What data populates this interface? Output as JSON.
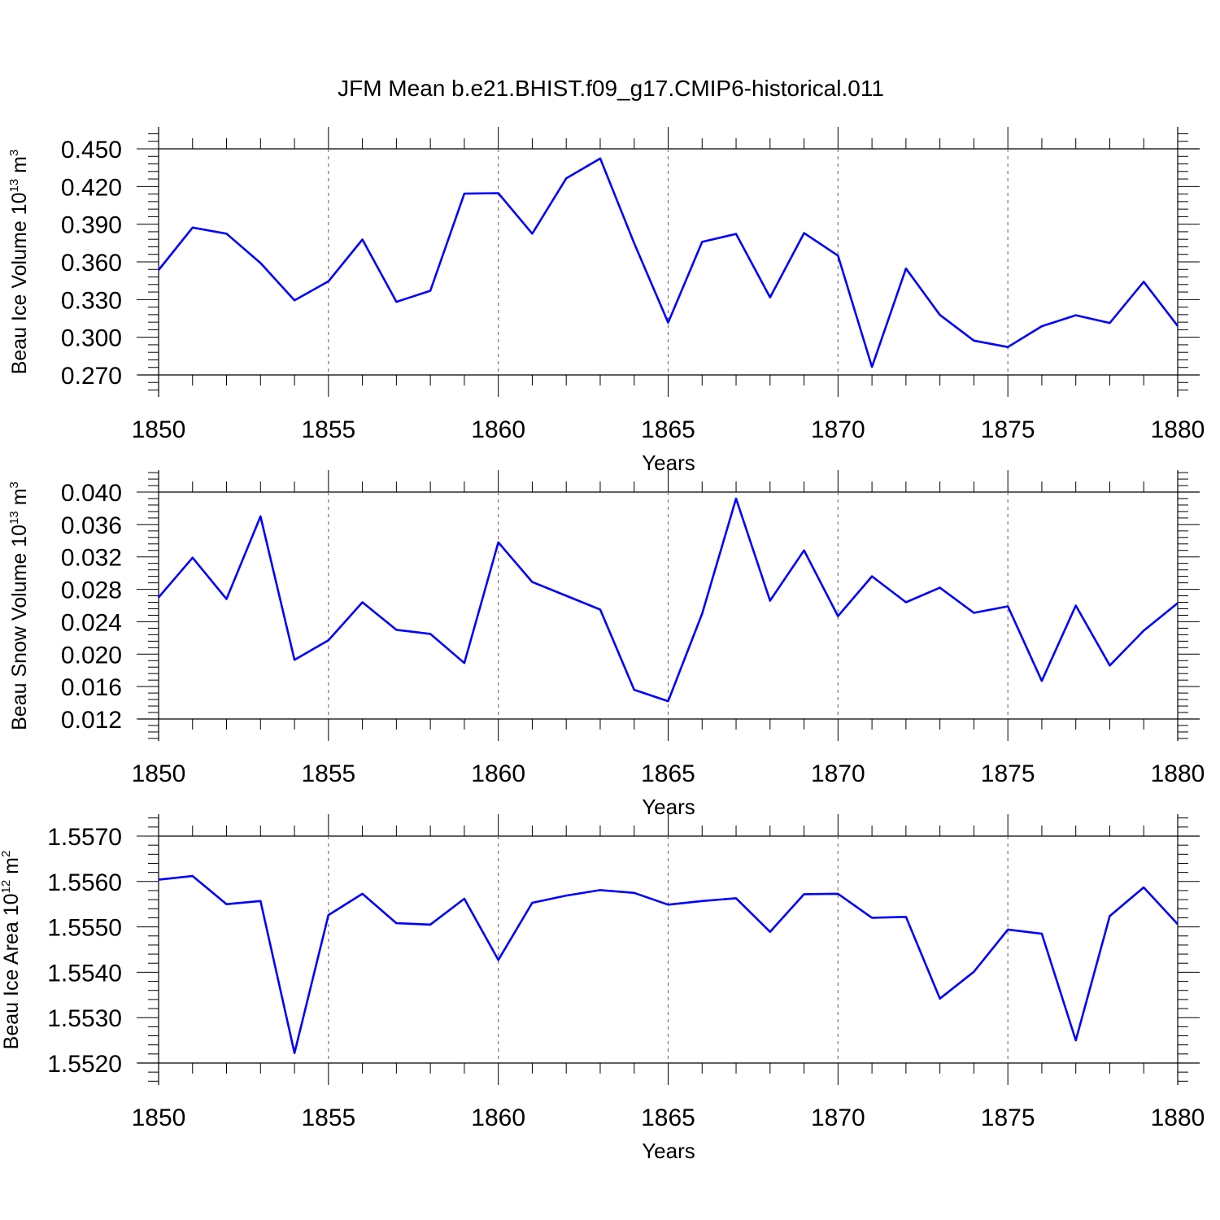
{
  "chart_data": [
    {
      "type": "line",
      "title": "JFM Mean b.e21.BHIST.f09_g17.CMIP6-historical.011",
      "ylabel": "Beau Ice Volume 10",
      "ylabel_exp": "13",
      "ylabel_unit": "m",
      "ylabel_unit_exp": "3",
      "xlabel": "Years",
      "xlim": [
        1850,
        1880
      ],
      "ylim": [
        0.27,
        0.45
      ],
      "yticks": [
        "0.270",
        "0.300",
        "0.330",
        "0.360",
        "0.390",
        "0.420",
        "0.450"
      ],
      "xticks": [
        "1850",
        "1855",
        "1860",
        "1865",
        "1870",
        "1875",
        "1880"
      ],
      "x": [
        1850,
        1851,
        1852,
        1853,
        1854,
        1855,
        1856,
        1857,
        1858,
        1859,
        1860,
        1861,
        1862,
        1863,
        1864,
        1865,
        1866,
        1867,
        1868,
        1869,
        1870,
        1871,
        1872,
        1873,
        1874,
        1875,
        1876,
        1877,
        1878,
        1879,
        1880
      ],
      "values": [
        0.3535,
        0.3873,
        0.3825,
        0.3591,
        0.3294,
        0.3445,
        0.3778,
        0.3282,
        0.337,
        0.4143,
        0.4147,
        0.3825,
        0.4265,
        0.4423,
        0.3749,
        0.3117,
        0.3759,
        0.3823,
        0.3318,
        0.3829,
        0.365,
        0.2764,
        0.3547,
        0.3178,
        0.2973,
        0.2922,
        0.3088,
        0.3175,
        0.3114,
        0.3442,
        0.309
      ],
      "color": "#0000ff"
    },
    {
      "type": "line",
      "ylabel": "Beau Snow Volume 10",
      "ylabel_exp": "13",
      "ylabel_unit": "m",
      "ylabel_unit_exp": "3",
      "xlabel": "Years",
      "xlim": [
        1850,
        1880
      ],
      "ylim": [
        0.012,
        0.04
      ],
      "yticks": [
        "0.012",
        "0.016",
        "0.020",
        "0.024",
        "0.028",
        "0.032",
        "0.036",
        "0.040"
      ],
      "xticks": [
        "1850",
        "1855",
        "1860",
        "1865",
        "1870",
        "1875",
        "1880"
      ],
      "x": [
        1850,
        1851,
        1852,
        1853,
        1854,
        1855,
        1856,
        1857,
        1858,
        1859,
        1860,
        1861,
        1862,
        1863,
        1864,
        1865,
        1866,
        1867,
        1868,
        1869,
        1870,
        1871,
        1872,
        1873,
        1874,
        1875,
        1876,
        1877,
        1878,
        1879,
        1880
      ],
      "values": [
        0.027,
        0.0319,
        0.0268,
        0.037,
        0.0193,
        0.0217,
        0.0264,
        0.023,
        0.0225,
        0.0189,
        0.0338,
        0.0289,
        0.0272,
        0.0255,
        0.0156,
        0.0142,
        0.025,
        0.0392,
        0.0266,
        0.0328,
        0.0247,
        0.0296,
        0.0264,
        0.0282,
        0.0251,
        0.0259,
        0.0167,
        0.026,
        0.0186,
        0.0229,
        0.0263
      ],
      "color": "#0000ff"
    },
    {
      "type": "line",
      "ylabel": "Beau Ice Area 10",
      "ylabel_exp": "12",
      "ylabel_unit": "m",
      "ylabel_unit_exp": "2",
      "xlabel": "Years",
      "xlim": [
        1850,
        1880
      ],
      "ylim": [
        1.552,
        1.557
      ],
      "yticks": [
        "1.5520",
        "1.5530",
        "1.5540",
        "1.5550",
        "1.5560",
        "1.5570"
      ],
      "xticks": [
        "1850",
        "1855",
        "1860",
        "1865",
        "1870",
        "1875",
        "1880"
      ],
      "x": [
        1850,
        1851,
        1852,
        1853,
        1854,
        1855,
        1856,
        1857,
        1858,
        1859,
        1860,
        1861,
        1862,
        1863,
        1864,
        1865,
        1866,
        1867,
        1868,
        1869,
        1870,
        1871,
        1872,
        1873,
        1874,
        1875,
        1876,
        1877,
        1878,
        1879,
        1880
      ],
      "values": [
        1.55604,
        1.55612,
        1.5555,
        1.55557,
        1.55222,
        1.55526,
        1.55573,
        1.55508,
        1.55505,
        1.55562,
        1.55427,
        1.55553,
        1.55569,
        1.55581,
        1.55575,
        1.55549,
        1.55557,
        1.55563,
        1.55489,
        1.55572,
        1.55573,
        1.5552,
        1.55522,
        1.55342,
        1.55401,
        1.55494,
        1.55485,
        1.5525,
        1.55524,
        1.55587,
        1.55506
      ],
      "color": "#0000ff"
    }
  ]
}
